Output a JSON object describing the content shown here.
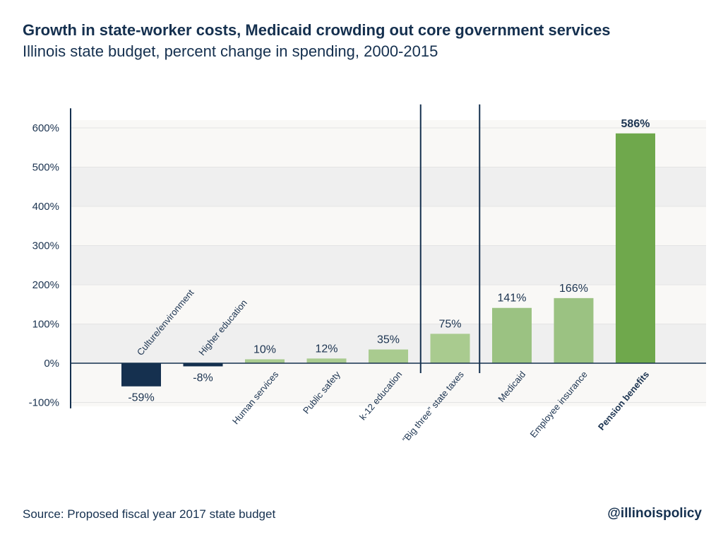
{
  "header": {
    "title": "Growth in state-worker costs, Medicaid crowding out core government services",
    "subtitle": "Illinois state budget, percent change in spending, 2000-2015"
  },
  "footer": {
    "source": "Source: Proposed fiscal year 2017 state budget",
    "handle": "@illinoispolicy"
  },
  "chart_data": {
    "type": "bar",
    "title": "Growth in state-worker costs, Medicaid crowding out core government services",
    "subtitle": "Illinois state budget, percent change in spending, 2000-2015",
    "xlabel": "",
    "ylabel": "",
    "ylim": [
      -100,
      600
    ],
    "ytick_labels": [
      "-100%",
      "0%",
      "100%",
      "200%",
      "300%",
      "400%",
      "500%",
      "600%"
    ],
    "ytick_values": [
      -100,
      0,
      100,
      200,
      300,
      400,
      500,
      600
    ],
    "grid": "horizontal bands",
    "categories": [
      "Culture/environment",
      "Higher education",
      "Human services",
      "Public safety",
      "k-12 education",
      "“Big three” state taxes",
      "Medicaid",
      "Employee insurance",
      "Pension benefits"
    ],
    "values": [
      -59,
      -8,
      10,
      12,
      35,
      75,
      141,
      166,
      586
    ],
    "value_labels": [
      "-59%",
      "-8%",
      "10%",
      "12%",
      "35%",
      "75%",
      "141%",
      "166%",
      "586%"
    ],
    "colors": [
      "#15304f",
      "#15304f",
      "#a9cb8f",
      "#a9cb8f",
      "#a9cb8f",
      "#a9cb8f",
      "#9bc282",
      "#9bc282",
      "#6fa84c"
    ],
    "bold": [
      false,
      false,
      false,
      false,
      false,
      false,
      false,
      false,
      true
    ],
    "group_dividers_after": [
      4,
      5
    ]
  }
}
